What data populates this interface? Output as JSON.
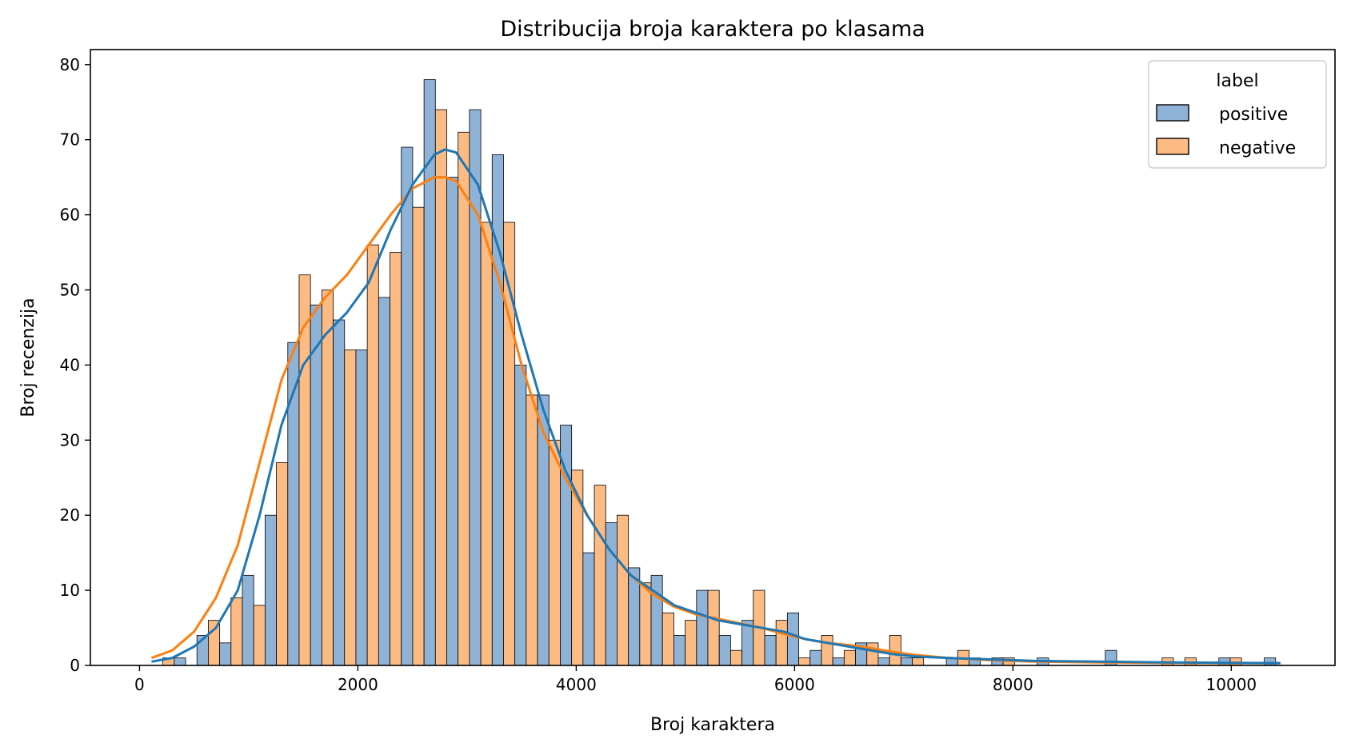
{
  "chart_data": {
    "type": "bar",
    "title": "Distribucija broja karaktera po klasama",
    "xlabel": "Broj karaktera",
    "ylabel": "Broj recenzija",
    "xlim": [
      -450,
      10950
    ],
    "ylim": [
      0,
      82
    ],
    "x_ticks": [
      0,
      2000,
      4000,
      6000,
      8000,
      10000
    ],
    "y_ticks": [
      0,
      10,
      20,
      30,
      40,
      50,
      60,
      70,
      80
    ],
    "grid": false,
    "legend": {
      "title": "label",
      "placement": "top-right",
      "entries": [
        {
          "name": "positive",
          "color": "#1f77b4"
        },
        {
          "name": "negative",
          "color": "#ff7f0e"
        }
      ]
    },
    "bin_width": 208,
    "bin_starts": [
      110,
      318,
      526,
      734,
      942,
      1150,
      1358,
      1566,
      1774,
      1982,
      2190,
      2398,
      2606,
      2814,
      3022,
      3230,
      3438,
      3646,
      3854,
      4062,
      4270,
      4478,
      4686,
      4894,
      5102,
      5310,
      5518,
      5726,
      5934,
      6142,
      6350,
      6558,
      6766,
      6974,
      7182,
      7390,
      7598,
      7806,
      8014,
      8222,
      8430,
      8638,
      8846,
      9054,
      9262,
      9470,
      9678,
      9886,
      10094,
      10302
    ],
    "series": [
      {
        "name": "positive",
        "color": "#1f77b4",
        "bar_fill": "#8fb3d6",
        "values": [
          0,
          1,
          4,
          3,
          12,
          20,
          43,
          48,
          46,
          42,
          49,
          69,
          78,
          65,
          74,
          68,
          40,
          36,
          32,
          15,
          19,
          13,
          12,
          4,
          10,
          4,
          6,
          4,
          7,
          2,
          1,
          3,
          1,
          1,
          0,
          1,
          1,
          1,
          0,
          1,
          0,
          0,
          2,
          0,
          0,
          0,
          0,
          1,
          0,
          1
        ],
        "kde_x": [
          110,
          300,
          500,
          700,
          900,
          1100,
          1300,
          1500,
          1700,
          1900,
          2100,
          2300,
          2500,
          2700,
          2800,
          2900,
          3100,
          3300,
          3500,
          3700,
          3900,
          4100,
          4300,
          4500,
          4700,
          4900,
          5100,
          5300,
          5500,
          5700,
          5900,
          6100,
          6300,
          6500,
          6700,
          6900,
          7100,
          7400,
          7800,
          8200,
          8800,
          9400,
          10000,
          10450
        ],
        "kde_y": [
          0.5,
          1,
          2.5,
          5,
          10,
          20,
          32,
          40,
          44,
          47,
          51,
          58,
          64,
          68,
          68.7,
          68.3,
          64,
          55,
          44,
          34,
          26,
          20,
          15.5,
          12,
          10,
          8,
          7,
          6,
          5.5,
          5,
          4.5,
          3.5,
          3,
          2.5,
          2,
          1.5,
          1.2,
          1,
          0.8,
          0.6,
          0.5,
          0.4,
          0.35,
          0.3
        ]
      },
      {
        "name": "negative",
        "color": "#ff7f0e",
        "bar_fill": "#fdbb84",
        "values": [
          1,
          0,
          6,
          9,
          8,
          27,
          52,
          50,
          42,
          56,
          55,
          61,
          74,
          71,
          59,
          59,
          36,
          30,
          26,
          24,
          20,
          11,
          7,
          6,
          10,
          2,
          10,
          6,
          1,
          4,
          2,
          3,
          4,
          1,
          0,
          2,
          0,
          1,
          0,
          0,
          0,
          0,
          0,
          0,
          1,
          1,
          0,
          1,
          0,
          0
        ],
        "kde_x": [
          110,
          300,
          500,
          700,
          900,
          1100,
          1300,
          1500,
          1700,
          1900,
          2100,
          2300,
          2500,
          2700,
          2800,
          2900,
          3100,
          3300,
          3500,
          3700,
          3900,
          4100,
          4300,
          4500,
          4700,
          4900,
          5100,
          5300,
          5500,
          5700,
          5900,
          6100,
          6300,
          6500,
          6700,
          6900,
          7100,
          7400,
          7800,
          8200,
          8800,
          9400,
          10000,
          10450
        ],
        "kde_y": [
          1,
          2,
          4.5,
          9,
          16,
          27,
          38,
          45,
          49,
          52,
          56,
          60,
          63.5,
          65,
          65,
          64.5,
          60,
          51,
          40,
          31,
          25,
          20,
          15.5,
          12,
          9.5,
          7.8,
          6.8,
          6.2,
          5.6,
          5,
          4.2,
          3.5,
          3,
          2.7,
          2.3,
          1.8,
          1.4,
          1,
          0.7,
          0.5,
          0.4,
          0.35,
          0.3,
          0.3
        ]
      }
    ]
  }
}
